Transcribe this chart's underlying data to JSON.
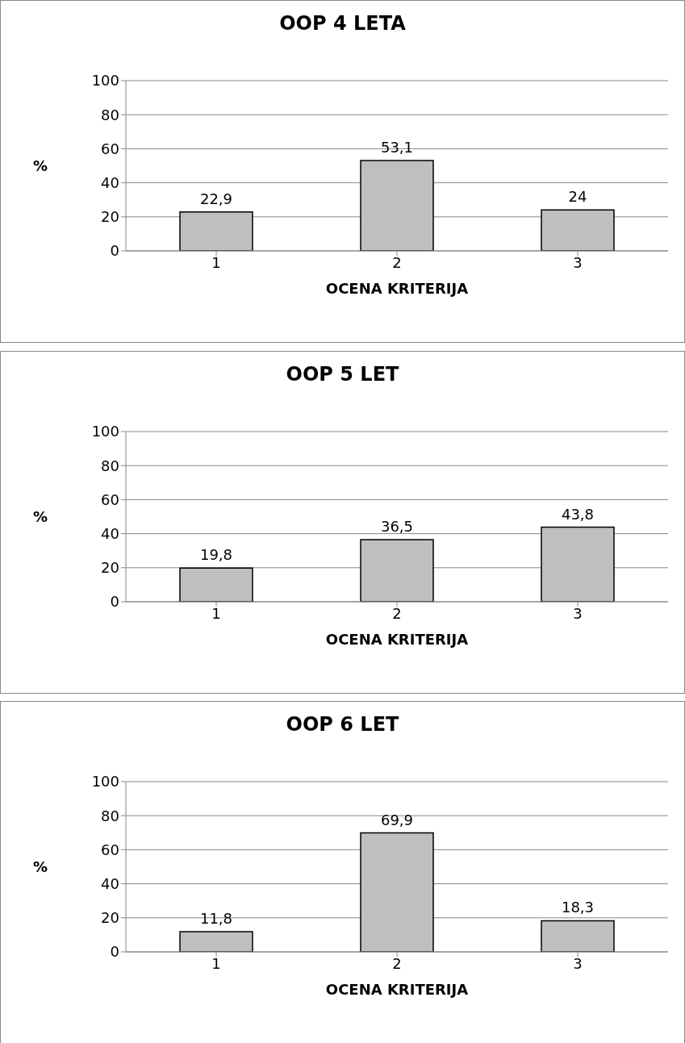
{
  "chart_data": [
    {
      "type": "bar",
      "title": "OOP 4 LETA",
      "xlabel": "OCENA KRITERIJA",
      "ylabel": "%",
      "categories": [
        "1",
        "2",
        "3"
      ],
      "values": [
        22.9,
        53.1,
        24
      ],
      "value_labels": [
        "22,9",
        "53,1",
        "24"
      ],
      "color": "#bfbfbf",
      "ylim": [
        0,
        100
      ],
      "yticks": [
        0,
        20,
        40,
        60,
        80,
        100
      ],
      "grid": "y"
    },
    {
      "type": "bar",
      "title": "OOP 5 LET",
      "xlabel": "OCENA KRITERIJA",
      "ylabel": "%",
      "categories": [
        "1",
        "2",
        "3"
      ],
      "values": [
        19.8,
        36.5,
        43.8
      ],
      "value_labels": [
        "19,8",
        "36,5",
        "43,8"
      ],
      "color": "#bfbfbf",
      "ylim": [
        0,
        100
      ],
      "yticks": [
        0,
        20,
        40,
        60,
        80,
        100
      ],
      "grid": "y"
    },
    {
      "type": "bar",
      "title": "OOP 6 LET",
      "xlabel": "OCENA KRITERIJA",
      "ylabel": "%",
      "categories": [
        "1",
        "2",
        "3"
      ],
      "values": [
        11.8,
        69.9,
        18.3
      ],
      "value_labels": [
        "11,8",
        "69,9",
        "18,3"
      ],
      "color": "#bfbfbf",
      "ylim": [
        0,
        100
      ],
      "yticks": [
        0,
        20,
        40,
        60,
        80,
        100
      ],
      "grid": "y"
    }
  ]
}
